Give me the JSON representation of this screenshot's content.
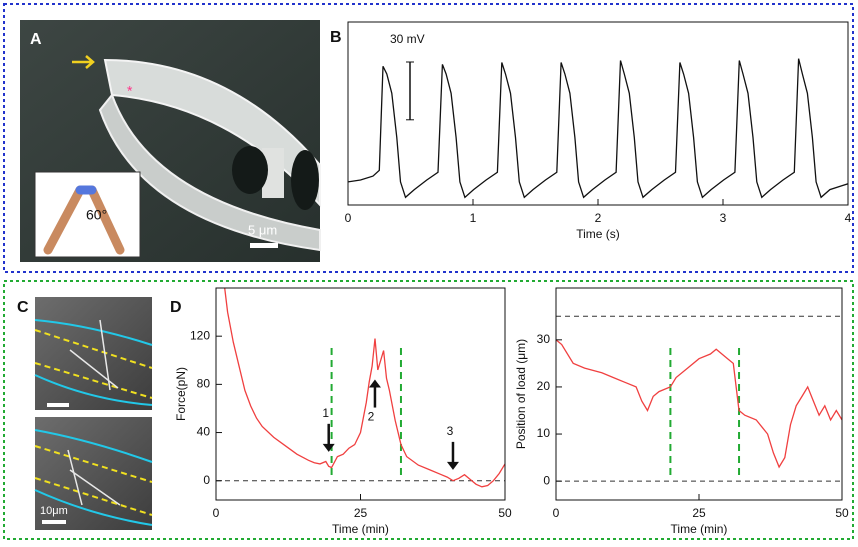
{
  "panel_labels": [
    "A",
    "B",
    "C",
    "D"
  ],
  "figure_A": {
    "scale_bar": "5 μm",
    "angle": "60°"
  },
  "figure_C": {
    "scale_bar": "10μm"
  },
  "chart_data": [
    {
      "type": "line",
      "xlabel": "Time (s)",
      "color": "#111111",
      "scale_bar": {
        "value": 30,
        "label": "30 mV"
      },
      "xlim": [
        0,
        4
      ],
      "ylim": [
        0,
        95
      ],
      "xticks": [
        0,
        1,
        2,
        3,
        4
      ],
      "x": [
        0,
        0.1,
        0.2,
        0.25,
        0.28,
        0.31,
        0.35,
        0.39,
        0.42,
        0.46,
        0.53,
        0.63,
        0.72,
        0.755,
        0.785,
        0.825,
        0.865,
        0.895,
        0.935,
        1.005,
        1.105,
        1.195,
        1.23,
        1.26,
        1.3,
        1.34,
        1.37,
        1.41,
        1.48,
        1.58,
        1.67,
        1.705,
        1.735,
        1.775,
        1.815,
        1.845,
        1.885,
        1.955,
        2.055,
        2.145,
        2.18,
        2.21,
        2.25,
        2.29,
        2.32,
        2.36,
        2.43,
        2.53,
        2.62,
        2.655,
        2.685,
        2.725,
        2.765,
        2.795,
        2.835,
        2.905,
        3.005,
        3.095,
        3.13,
        3.16,
        3.2,
        3.24,
        3.27,
        3.31,
        3.38,
        3.48,
        3.57,
        3.605,
        3.635,
        3.675,
        3.715,
        3.745,
        3.785,
        3.855,
        3.95,
        4.0
      ],
      "values": [
        12,
        13,
        15,
        18,
        72,
        68,
        58,
        35,
        12,
        4,
        8,
        13,
        17,
        73,
        68,
        58,
        35,
        12,
        4,
        8,
        13,
        17,
        74,
        68,
        58,
        35,
        12,
        4,
        8,
        13,
        17,
        74,
        68,
        58,
        35,
        12,
        4,
        8,
        13,
        17,
        75,
        68,
        58,
        35,
        12,
        4,
        8,
        13,
        17,
        74,
        68,
        58,
        35,
        12,
        4,
        8,
        13,
        17,
        75,
        68,
        58,
        35,
        12,
        4,
        8,
        13,
        17,
        76,
        68,
        58,
        35,
        12,
        4,
        8,
        10,
        11
      ]
    },
    {
      "type": "line",
      "xlabel": "Time (min)",
      "ylabel": "Force(pN)",
      "color": "#f04040",
      "xlim": [
        0,
        50
      ],
      "ylim": [
        -16,
        160
      ],
      "xticks": [
        0,
        25,
        50
      ],
      "yticks": [
        0,
        40,
        80,
        120
      ],
      "hlines": [
        0
      ],
      "vlines": [
        20,
        32
      ],
      "annotations": [
        {
          "text": "1",
          "x": 19.5,
          "y": 24,
          "direction": "down"
        },
        {
          "text": "2",
          "x": 27.5,
          "y": 84,
          "direction": "up"
        },
        {
          "text": "3",
          "x": 41,
          "y": 9,
          "direction": "down"
        }
      ],
      "x": [
        1.5,
        2,
        3,
        4,
        5,
        6,
        7,
        8,
        10,
        12,
        14,
        16,
        17,
        18,
        19,
        19.5,
        20,
        21,
        22,
        23,
        24,
        25,
        26,
        26.5,
        27,
        27.5,
        28,
        28.5,
        29,
        29.5,
        30,
        31,
        32,
        33,
        35,
        37,
        39,
        40,
        41,
        42,
        43,
        44,
        45,
        46,
        47,
        48,
        49,
        50
      ],
      "values": [
        160,
        140,
        115,
        95,
        75,
        62,
        52,
        45,
        36,
        29,
        22,
        17,
        15,
        14,
        16,
        12,
        11,
        20,
        22,
        27,
        30,
        40,
        65,
        82,
        95,
        118,
        92,
        100,
        108,
        85,
        75,
        50,
        30,
        20,
        13,
        9,
        5,
        3,
        0,
        2,
        5,
        1,
        -3,
        -5,
        -4,
        0,
        6,
        14
      ]
    },
    {
      "type": "line",
      "xlabel": "Time (min)",
      "ylabel": "Position of load (μm)",
      "color": "#f04040",
      "xlim": [
        0,
        50
      ],
      "ylim": [
        -4,
        41
      ],
      "xticks": [
        0,
        25,
        50
      ],
      "yticks": [
        0,
        10,
        20,
        30
      ],
      "hlines": [
        0,
        35
      ],
      "vlines": [
        20,
        32
      ],
      "x": [
        0,
        1,
        3,
        5,
        8,
        10,
        12,
        14,
        15,
        16,
        17,
        18,
        20,
        21,
        23,
        25,
        27,
        28,
        29,
        30,
        31,
        32,
        33,
        35,
        37,
        38,
        39,
        40,
        41,
        42,
        43,
        44,
        45,
        46,
        47,
        48,
        49,
        50
      ],
      "values": [
        30,
        29,
        25,
        24,
        23,
        22,
        21,
        20,
        17,
        15,
        18,
        19,
        20,
        22,
        24,
        26,
        27,
        28,
        27,
        26,
        25,
        15,
        14,
        13,
        10,
        6,
        3,
        5,
        12,
        16,
        18,
        20,
        17,
        14,
        16,
        13,
        15,
        13
      ]
    }
  ]
}
